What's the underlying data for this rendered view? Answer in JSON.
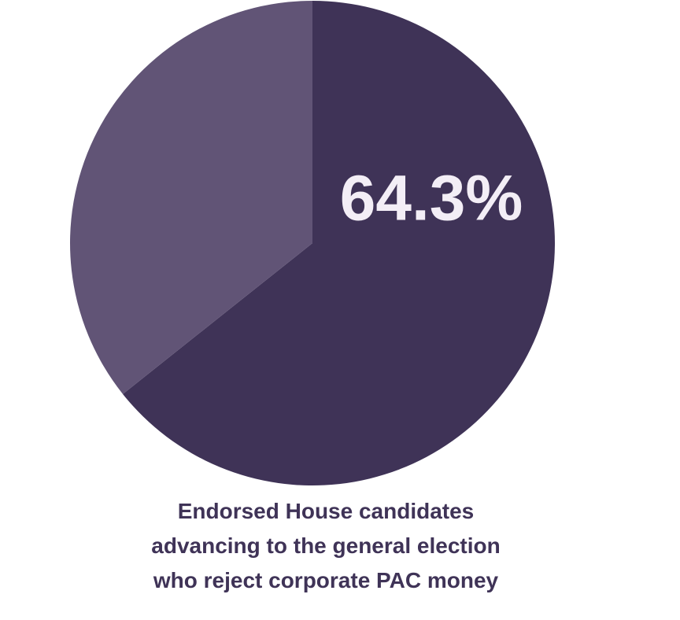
{
  "chart_data": {
    "type": "pie",
    "title": "Endorsed House candidates\nadvancing to the general election\nwho reject corporate PAC money",
    "values": [
      64.3,
      35.7
    ],
    "value_labels": [
      "64.3%",
      null
    ],
    "colors": [
      "#3f3357",
      "#615476"
    ],
    "label_color": "#f3eef6",
    "title_color": "#3f3357"
  }
}
